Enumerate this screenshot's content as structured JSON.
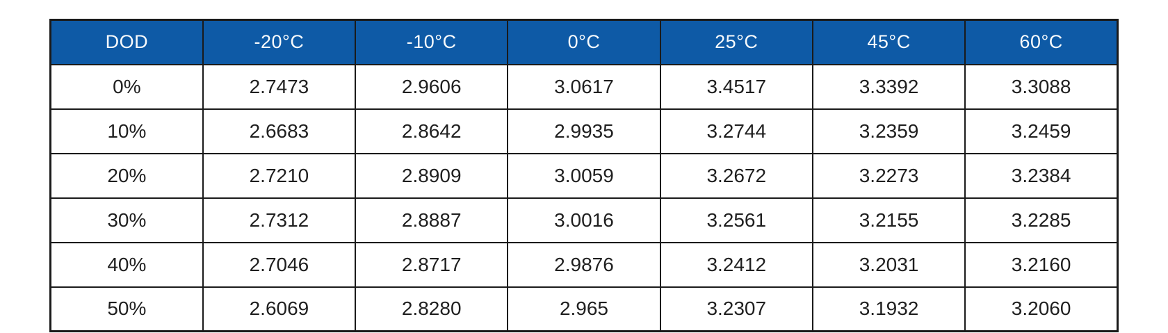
{
  "table": {
    "name": "dod-temperature-voltage-table",
    "columns": [
      "DOD",
      "-20°C",
      "-10°C",
      "0°C",
      "25°C",
      "45°C",
      "60°C"
    ],
    "rows": [
      {
        "dod": "0%",
        "values": [
          "2.7473",
          "2.9606",
          "3.0617",
          "3.4517",
          "3.3392",
          "3.3088"
        ]
      },
      {
        "dod": "10%",
        "values": [
          "2.6683",
          "2.8642",
          "2.9935",
          "3.2744",
          "3.2359",
          "3.2459"
        ]
      },
      {
        "dod": "20%",
        "values": [
          "2.7210",
          "2.8909",
          "3.0059",
          "3.2672",
          "3.2273",
          "3.2384"
        ]
      },
      {
        "dod": "30%",
        "values": [
          "2.7312",
          "2.8887",
          "3.0016",
          "3.2561",
          "3.2155",
          "3.2285"
        ]
      },
      {
        "dod": "40%",
        "values": [
          "2.7046",
          "2.8717",
          "2.9876",
          "3.2412",
          "3.2031",
          "3.2160"
        ]
      },
      {
        "dod": "50%",
        "values": [
          "2.6069",
          "2.8280",
          "2.965",
          "3.2307",
          "3.1932",
          "3.2060"
        ]
      }
    ],
    "colors": {
      "header_bg": "#0e5aa6",
      "header_text": "#f7fafc",
      "border": "#1a1a1a",
      "body_text": "#1f1f1f"
    }
  }
}
